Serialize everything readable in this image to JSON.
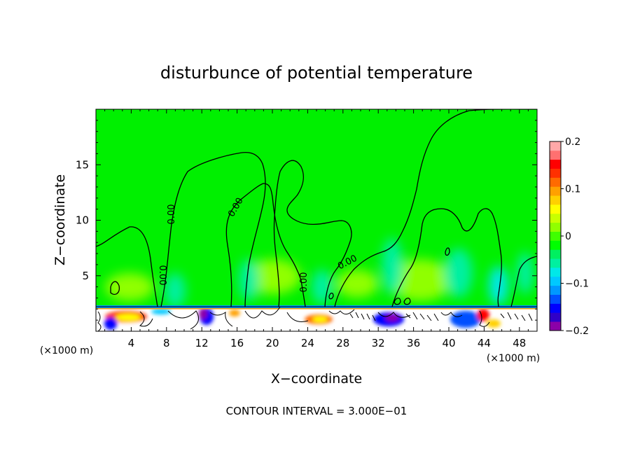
{
  "chart_data": {
    "type": "heatmap",
    "title": "disturbunce of potential temperature",
    "xlabel": "X−coordinate",
    "ylabel": "Z−coordinate",
    "x_unit_left": "(×1000 m)",
    "x_unit_right": "(×1000 m)",
    "xlim": [
      0,
      50
    ],
    "ylim": [
      0,
      20
    ],
    "x_ticks": [
      4,
      8,
      12,
      16,
      20,
      24,
      28,
      32,
      36,
      40,
      44,
      48
    ],
    "y_ticks": [
      5,
      10,
      15
    ],
    "footer": "CONTOUR INTERVAL = 3.000E−01",
    "contour_label": "0.00",
    "colorbar": {
      "ticks": [
        {
          "value": 0.2,
          "label": "0.2"
        },
        {
          "value": 0.1,
          "label": "0.1"
        },
        {
          "value": 0,
          "label": "0"
        },
        {
          "value": -0.1,
          "label": "−0.1"
        },
        {
          "value": -0.2,
          "label": "−0.2"
        }
      ],
      "min": -0.2,
      "max": 0.2,
      "colors": [
        "#8b00a8",
        "#3000c8",
        "#0000ff",
        "#0050ff",
        "#0098ff",
        "#00c8ff",
        "#00e8e8",
        "#00f0a0",
        "#00f060",
        "#00ff00",
        "#40ff00",
        "#90ff00",
        "#c8ff00",
        "#ffff00",
        "#ffd000",
        "#ffa000",
        "#ff6a00",
        "#ff3000",
        "#ff0000",
        "#ff7070",
        "#ffa8a8"
      ]
    }
  }
}
